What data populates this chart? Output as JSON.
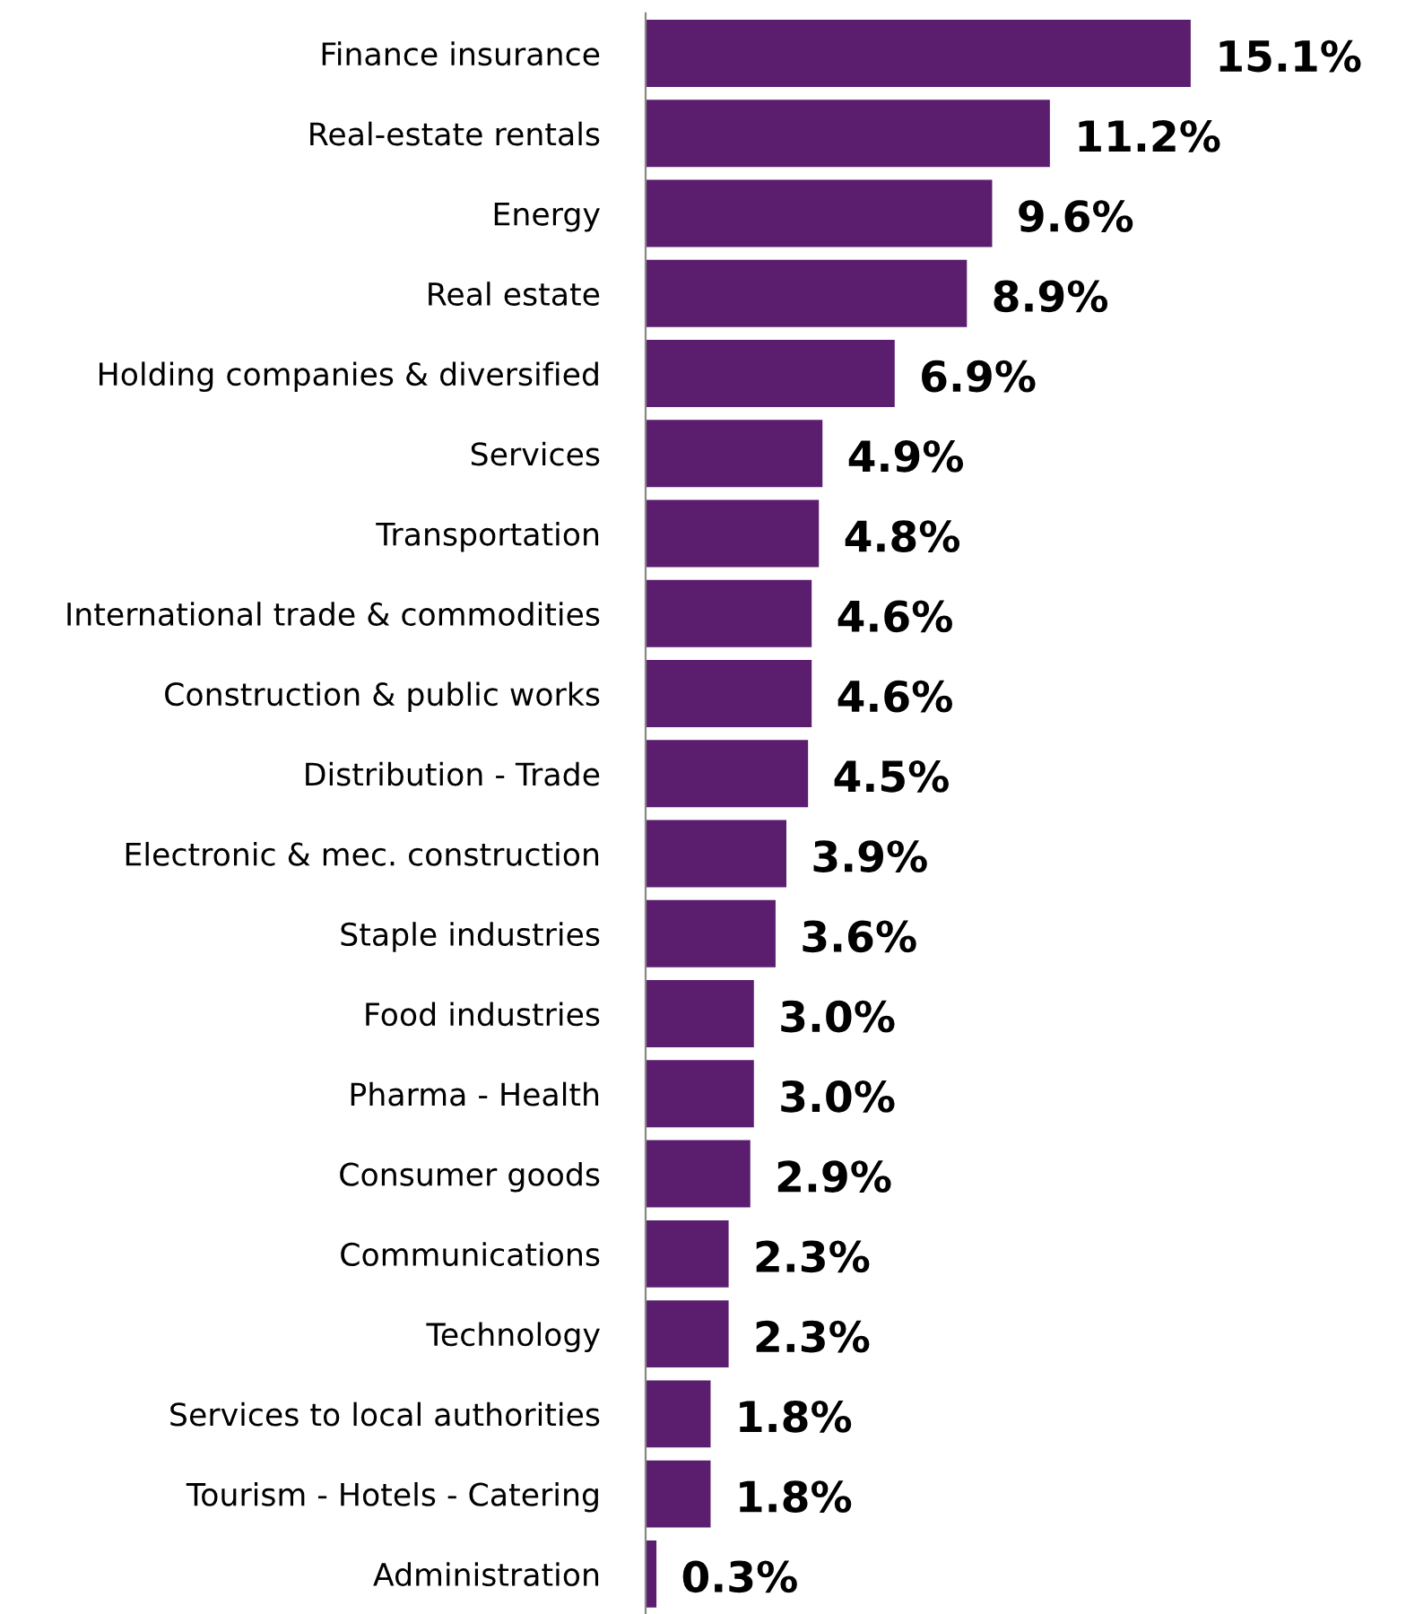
{
  "chart_data": {
    "type": "bar",
    "orientation": "horizontal",
    "categories": [
      "Finance insurance",
      "Real-estate rentals",
      "Energy",
      "Real estate",
      "Holding companies & diversified",
      "Services",
      "Transportation",
      "International trade & commodities",
      "Construction & public works",
      "Distribution - Trade",
      "Electronic & mec. construction",
      "Staple industries",
      "Food industries",
      "Pharma - Health",
      "Consumer goods",
      "Communications",
      "Technology",
      "Services to local authorities",
      "Tourism - Hotels - Catering",
      "Administration"
    ],
    "values": [
      15.1,
      11.2,
      9.6,
      8.9,
      6.9,
      4.9,
      4.8,
      4.6,
      4.6,
      4.5,
      3.9,
      3.6,
      3.0,
      3.0,
      2.9,
      2.3,
      2.3,
      1.8,
      1.8,
      0.3
    ],
    "value_labels": [
      "15.1%",
      "11.2%",
      "9.6%",
      "8.9%",
      "6.9%",
      "4.9%",
      "4.8%",
      "4.6%",
      "4.6%",
      "4.5%",
      "3.9%",
      "3.6%",
      "3.0%",
      "3.0%",
      "2.9%",
      "2.3%",
      "2.3%",
      "1.8%",
      "1.8%",
      "0.3%"
    ],
    "color": "#5b1e6e",
    "grid": false,
    "legend": false
  }
}
